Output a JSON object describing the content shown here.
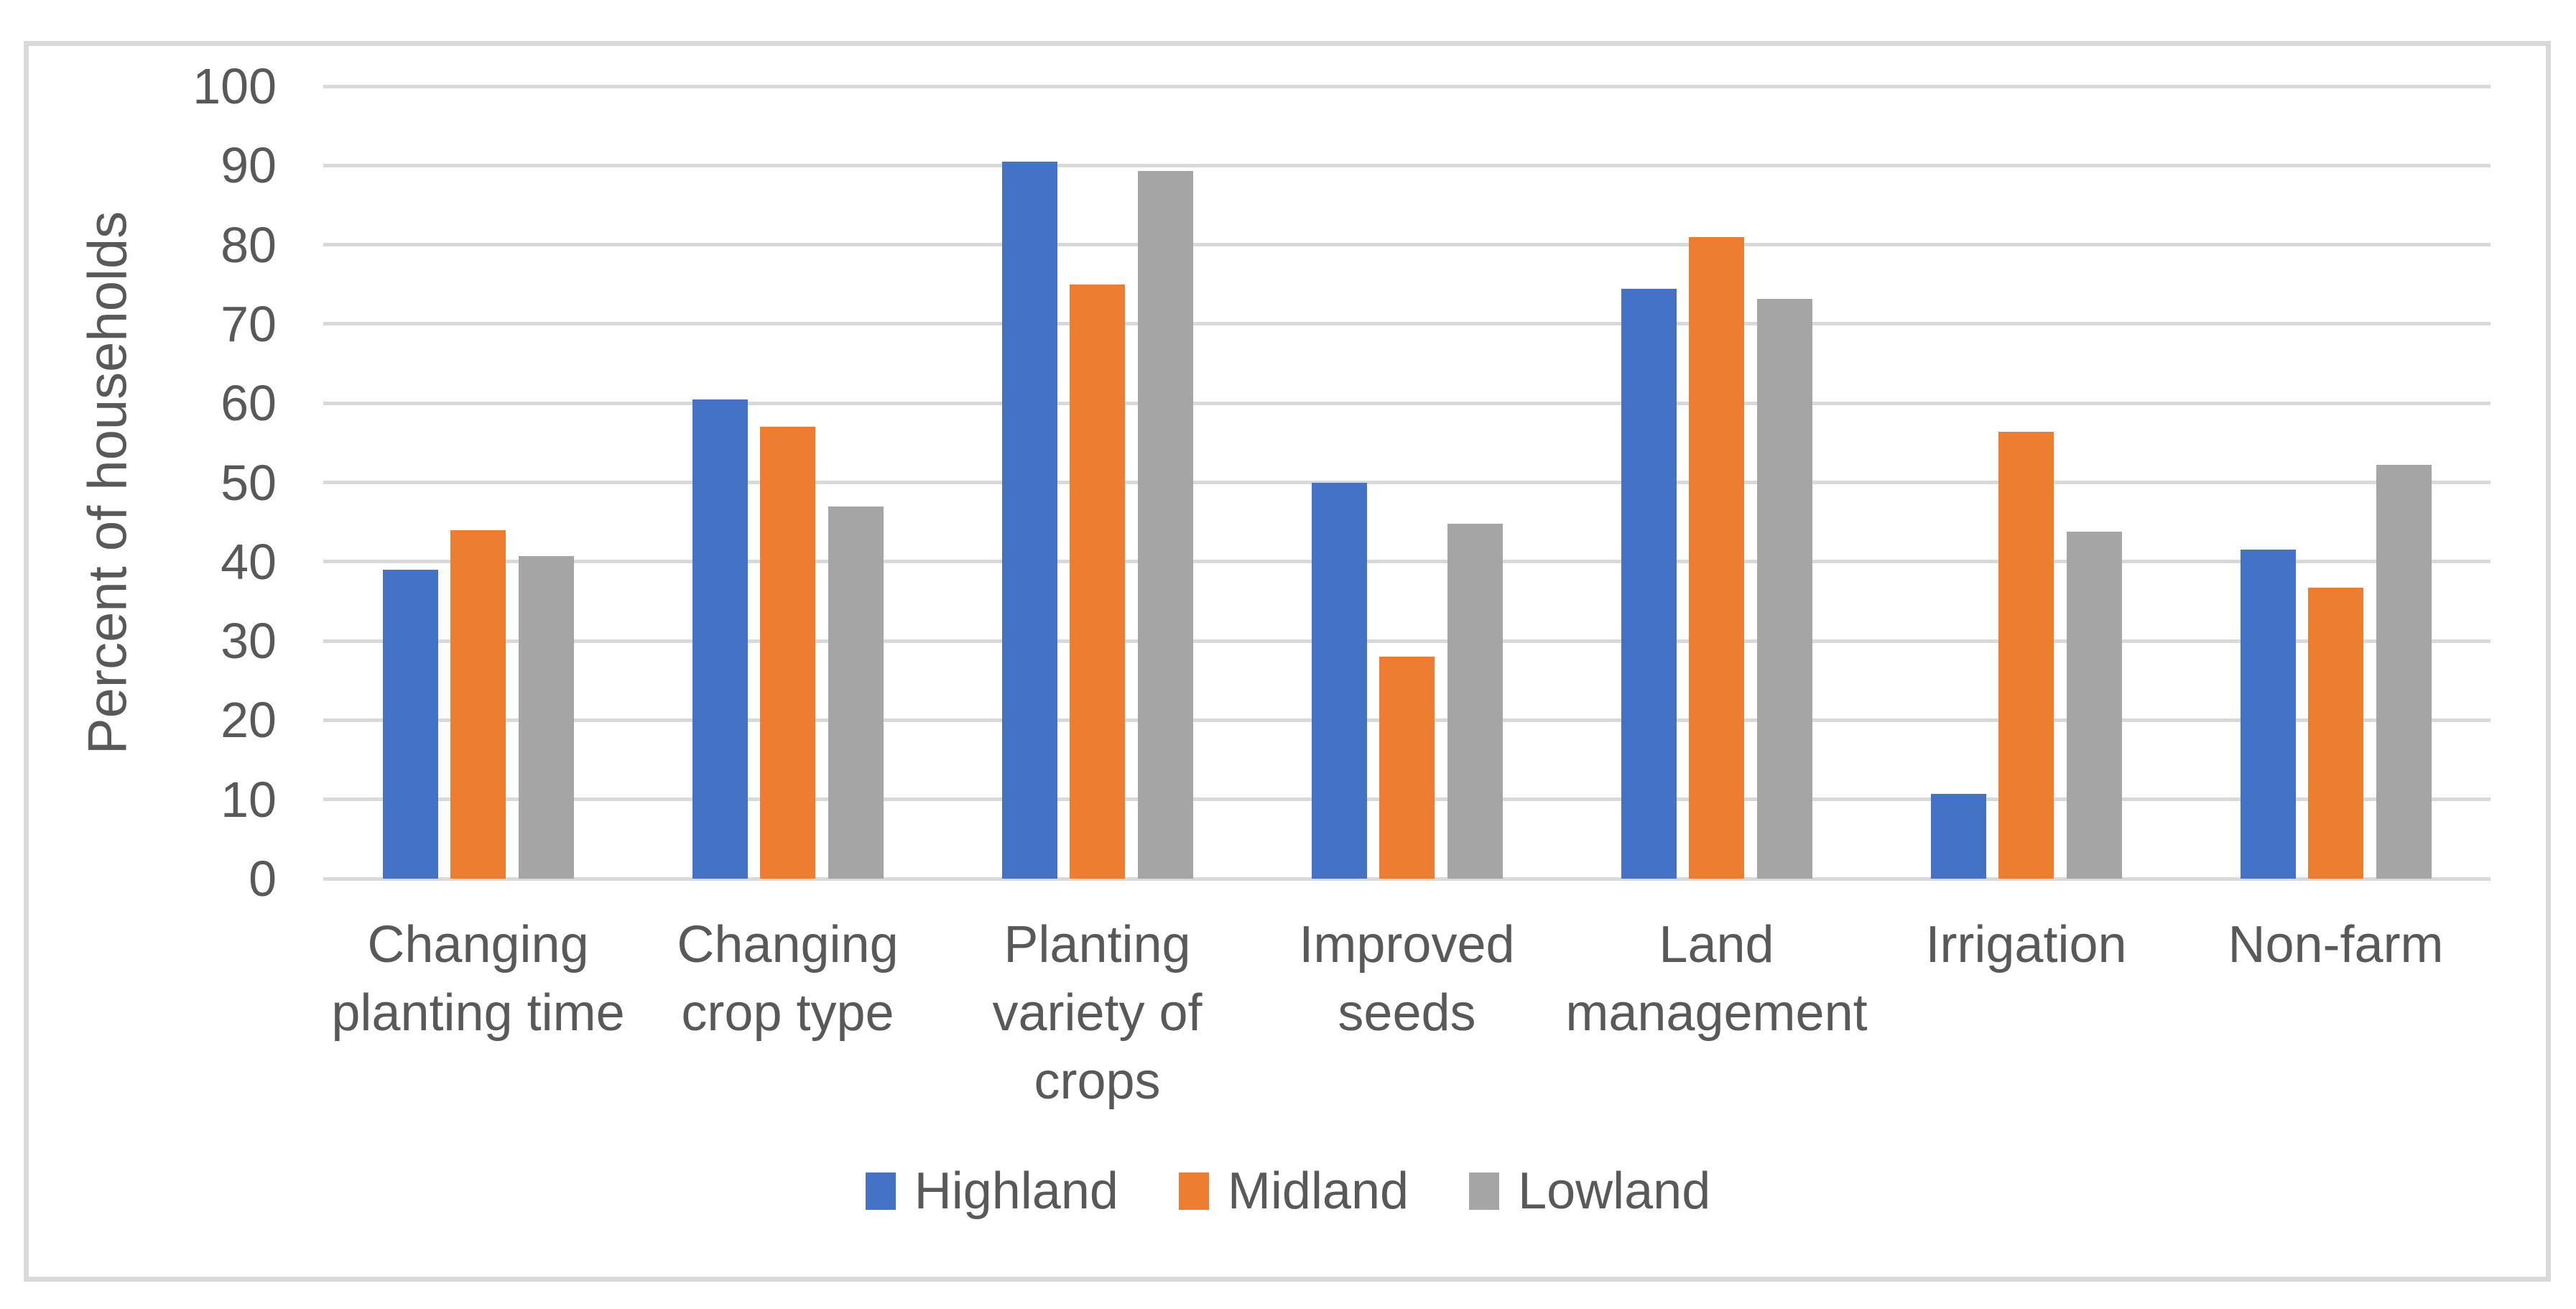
{
  "chart": {
    "background_color": "#FFFFFF",
    "border_color": "#D9D9D9",
    "gridline_color": "#D9D9D9",
    "text_color": "#595959"
  },
  "chart_data": {
    "type": "bar",
    "title": "",
    "xlabel": "",
    "ylabel": "Percent of households",
    "ylim": [
      0,
      100
    ],
    "ytick_step": 10,
    "yticks": [
      "100",
      "90",
      "80",
      "70",
      "60",
      "50",
      "40",
      "30",
      "20",
      "10",
      "0"
    ],
    "grid": true,
    "legend_position": "bottom",
    "categories": [
      "Changing planting time",
      "Changing crop type",
      "Planting variety of crops",
      "Improved seeds",
      "Land management",
      "Irrigation",
      "Non-farm"
    ],
    "series": [
      {
        "name": "Highland",
        "color": "#4472C4",
        "values": [
          39,
          60.5,
          90.5,
          50,
          74.4,
          10.7,
          41.5
        ]
      },
      {
        "name": "Midland",
        "color": "#ED7D31",
        "values": [
          44,
          57,
          75,
          28,
          81,
          56.4,
          36.7
        ]
      },
      {
        "name": "Lowland",
        "color": "#A5A5A5",
        "values": [
          40.7,
          47,
          89.3,
          44.8,
          73.2,
          43.8,
          52.2
        ]
      }
    ]
  }
}
